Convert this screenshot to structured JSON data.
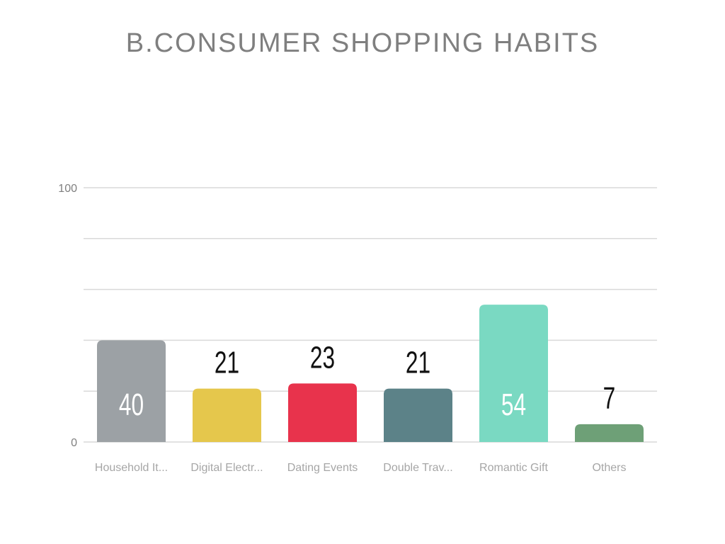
{
  "chart_data": {
    "type": "bar",
    "title": "B.CONSUMER SHOPPING HABITS",
    "categories": [
      "Household It...",
      "Digital Electr...",
      "Dating Events",
      "Double Trav...",
      "Romantic Gift",
      "Others"
    ],
    "values": [
      40,
      21,
      23,
      21,
      54,
      7
    ],
    "data_labels": [
      "40",
      "21",
      "23",
      "21",
      "54",
      "7"
    ],
    "colors": [
      "#9ca1a5",
      "#e5c74c",
      "#e8334c",
      "#5c8288",
      "#7ad9c2",
      "#6ea077"
    ],
    "label_inside": [
      true,
      false,
      false,
      false,
      true,
      false
    ],
    "ylim": [
      0,
      100
    ],
    "yticks": [
      "0",
      "100"
    ],
    "gridlines": 5,
    "grid": true,
    "legend": "none",
    "xlabel": "",
    "ylabel": ""
  }
}
